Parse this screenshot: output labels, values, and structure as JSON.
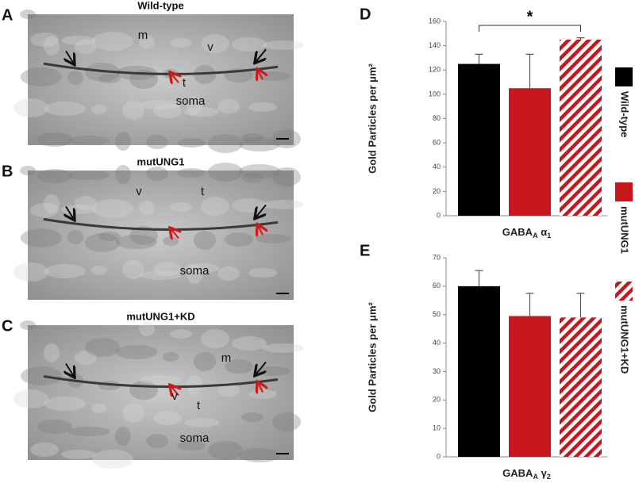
{
  "micrographs": [
    {
      "letter": "A",
      "title": "Wild-type",
      "labels": [
        "m",
        "v",
        "t",
        "soma"
      ]
    },
    {
      "letter": "B",
      "title": "mutUNG1",
      "labels": [
        "v",
        "t",
        "soma"
      ]
    },
    {
      "letter": "C",
      "title": "mutUNG1+KD",
      "labels": [
        "m",
        "v",
        "t",
        "soma"
      ]
    }
  ],
  "legend": [
    {
      "name": "Wild-type",
      "color": "#000000",
      "hatch": false
    },
    {
      "name": "mutUNG1",
      "color": "#c8161d",
      "hatch": false
    },
    {
      "name": "mutUNG1+KD",
      "color": "#c8161d",
      "hatch": true
    }
  ],
  "chart_data": [
    {
      "type": "bar",
      "letter": "D",
      "y_label": "Gold Particles per μm²",
      "x_label": [
        "GABA",
        "A",
        " α",
        "1"
      ],
      "values": [
        125,
        105,
        145
      ],
      "errors": [
        8,
        28,
        1.5
      ],
      "ylim": [
        0,
        160
      ],
      "yticks": [
        0,
        20,
        40,
        60,
        80,
        100,
        120,
        140,
        160
      ],
      "annotation": {
        "text": "*",
        "from": 0,
        "to": 2
      }
    },
    {
      "type": "bar",
      "letter": "E",
      "y_label": "Gold Particles per μm²",
      "x_label": [
        "GABA",
        "A",
        " γ",
        "2"
      ],
      "values": [
        60,
        49.5,
        49
      ],
      "errors": [
        5.5,
        8,
        8.5
      ],
      "ylim": [
        0,
        70
      ],
      "yticks": [
        0,
        10,
        20,
        30,
        40,
        50,
        60,
        70
      ]
    }
  ]
}
